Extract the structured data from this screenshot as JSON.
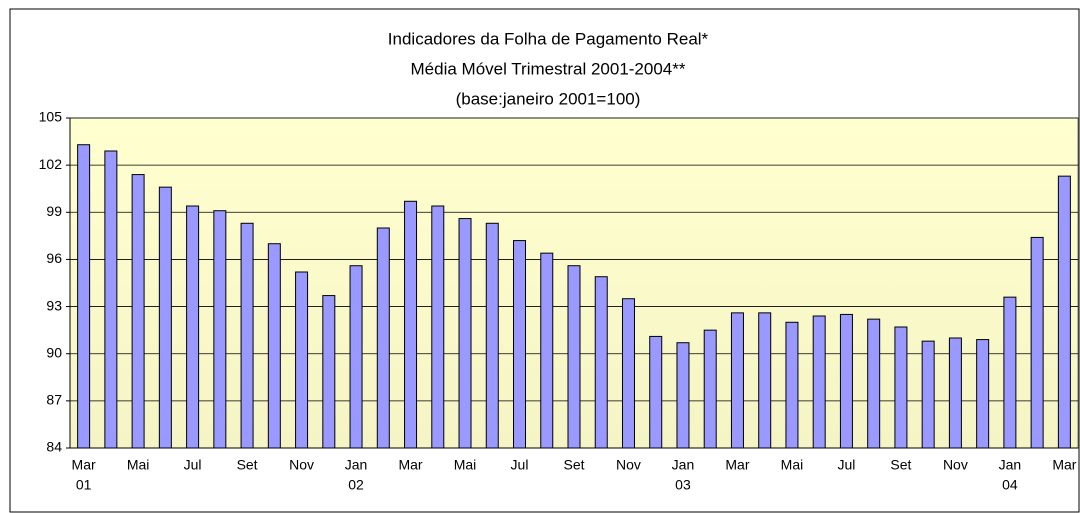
{
  "chart_data": {
    "type": "bar",
    "title": "Indicadores da Folha de Pagamento Real*",
    "subtitle": "Média Móvel Trimestral 2001-2004**",
    "note": "(base:janeiro 2001=100)",
    "categories": [
      "Mar",
      null,
      "Mai",
      null,
      "Jul",
      null,
      "Set",
      null,
      "Nov",
      null,
      "Jan",
      null,
      "Mar",
      null,
      "Mai",
      null,
      "Jul",
      null,
      "Set",
      null,
      "Nov",
      null,
      "Jan",
      null,
      "Mar",
      null,
      "Mai",
      null,
      "Jul",
      null,
      "Set",
      null,
      "Nov",
      null,
      "Jan",
      null,
      "Mar"
    ],
    "year_labels": [
      "01",
      null,
      null,
      null,
      null,
      null,
      null,
      null,
      null,
      null,
      "02",
      null,
      null,
      null,
      null,
      null,
      null,
      null,
      null,
      null,
      null,
      null,
      "03",
      null,
      null,
      null,
      null,
      null,
      null,
      null,
      null,
      null,
      null,
      null,
      "04",
      null,
      null
    ],
    "values": [
      103.3,
      102.9,
      101.4,
      100.6,
      99.4,
      99.1,
      98.3,
      97.0,
      95.2,
      93.7,
      95.6,
      98.0,
      99.7,
      99.4,
      98.6,
      98.3,
      97.2,
      96.4,
      95.6,
      94.9,
      93.5,
      91.1,
      90.7,
      91.5,
      92.6,
      92.6,
      92.0,
      92.4,
      92.5,
      92.2,
      91.7,
      90.8,
      91.0,
      90.9,
      93.6,
      97.4,
      101.3
    ],
    "color": "#9999ff",
    "ylim": [
      84,
      105
    ],
    "yticks": [
      84,
      87,
      90,
      93,
      96,
      99,
      102,
      105
    ],
    "grid": true
  }
}
